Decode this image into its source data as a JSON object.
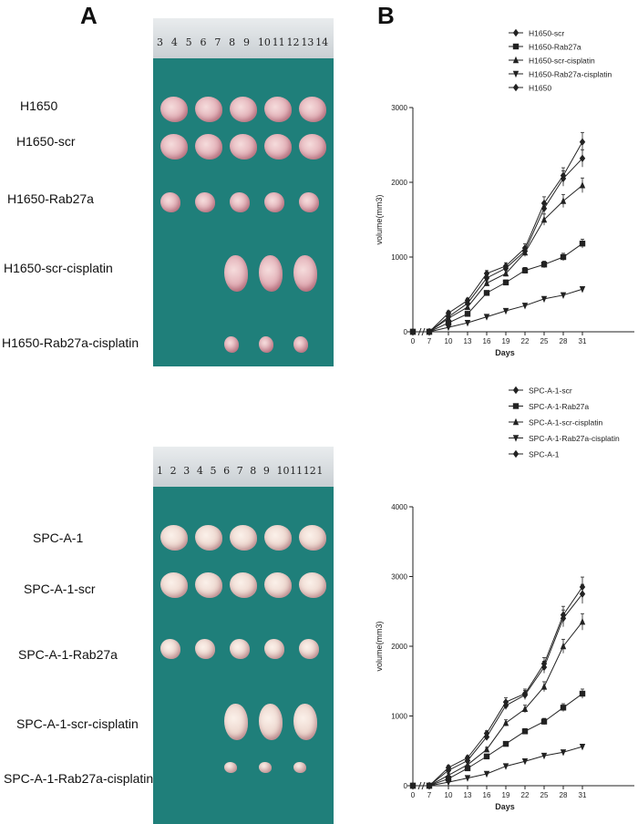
{
  "panels": {
    "a": "A",
    "b": "B"
  },
  "top_photo": {
    "ruler_numbers": [
      "3",
      "4",
      "5",
      "6",
      "7",
      "8",
      "9",
      "10",
      "11",
      "12",
      "13",
      "14"
    ],
    "row_labels": [
      "H1650",
      "H1650-scr",
      "H1650-Rab27a",
      "H1650-scr-cisplatin",
      "H1650-Rab27a-cisplatin"
    ],
    "row_counts": [
      5,
      5,
      5,
      3,
      3
    ]
  },
  "bottom_photo": {
    "ruler_numbers": [
      "1",
      "2",
      "3",
      "4",
      "5",
      "6",
      "7",
      "8",
      "9",
      "10",
      "11",
      "12",
      "1"
    ],
    "row_labels": [
      "SPC-A-1",
      "SPC-A-1-scr",
      "SPC-A-1-Rab27a",
      "SPC-A-1-scr-cisplatin",
      "SPC-A-1-Rab27a-cisplatin"
    ],
    "row_counts": [
      5,
      5,
      5,
      3,
      3
    ]
  },
  "chart_data": [
    {
      "type": "line",
      "title": "",
      "xlabel": "Days",
      "ylabel": "volume(mm3)",
      "x": [
        0,
        7,
        10,
        13,
        16,
        19,
        22,
        25,
        28,
        31
      ],
      "x_ticks": [
        "0",
        "7",
        "10",
        "13",
        "16",
        "19",
        "22",
        "25",
        "28",
        "31"
      ],
      "y_ticks": [
        "0",
        "1000",
        "2000",
        "3000"
      ],
      "ylim": [
        0,
        3000
      ],
      "legend_position": "top",
      "series": [
        {
          "name": "H1650-scr",
          "marker": "diamond",
          "values": [
            0,
            0,
            200,
            380,
            720,
            850,
            1080,
            1650,
            2050,
            2320
          ]
        },
        {
          "name": "H1650-Rab27a",
          "marker": "square",
          "values": [
            0,
            0,
            120,
            240,
            520,
            660,
            820,
            900,
            1000,
            1180
          ]
        },
        {
          "name": "H1650-scr-cisplatin",
          "marker": "triangle",
          "values": [
            0,
            0,
            180,
            330,
            650,
            780,
            1060,
            1500,
            1750,
            1960
          ]
        },
        {
          "name": "H1650-Rab27a-cisplatin",
          "marker": "triangle-down",
          "values": [
            0,
            0,
            60,
            120,
            200,
            280,
            350,
            440,
            490,
            570
          ]
        },
        {
          "name": "H1650",
          "marker": "diamond",
          "values": [
            0,
            0,
            250,
            420,
            780,
            880,
            1120,
            1720,
            2090,
            2540
          ]
        }
      ]
    },
    {
      "type": "line",
      "title": "",
      "xlabel": "Days",
      "ylabel": "volume(mm3)",
      "x": [
        0,
        7,
        10,
        13,
        16,
        19,
        22,
        25,
        28,
        31
      ],
      "x_ticks": [
        "0",
        "7",
        "10",
        "13",
        "16",
        "19",
        "22",
        "25",
        "28",
        "31"
      ],
      "y_ticks": [
        "0",
        "1000",
        "2000",
        "3000",
        "4000"
      ],
      "ylim": [
        0,
        4000
      ],
      "legend_position": "top",
      "series": [
        {
          "name": "SPC-A-1-scr",
          "marker": "diamond",
          "values": [
            0,
            0,
            220,
            360,
            700,
            1150,
            1300,
            1700,
            2400,
            2750
          ]
        },
        {
          "name": "SPC-A-1-Rab27a",
          "marker": "square",
          "values": [
            0,
            0,
            100,
            250,
            420,
            600,
            780,
            920,
            1120,
            1320
          ]
        },
        {
          "name": "SPC-A-1-scr-cisplatin",
          "marker": "triangle",
          "values": [
            0,
            0,
            150,
            300,
            520,
            900,
            1100,
            1420,
            2000,
            2350
          ]
        },
        {
          "name": "SPC-A-1-Rab27a-cisplatin",
          "marker": "triangle-down",
          "values": [
            0,
            0,
            50,
            110,
            170,
            280,
            350,
            430,
            480,
            560
          ]
        },
        {
          "name": "SPC-A-1",
          "marker": "diamond",
          "values": [
            0,
            0,
            260,
            400,
            750,
            1200,
            1320,
            1750,
            2450,
            2850
          ]
        }
      ]
    }
  ]
}
